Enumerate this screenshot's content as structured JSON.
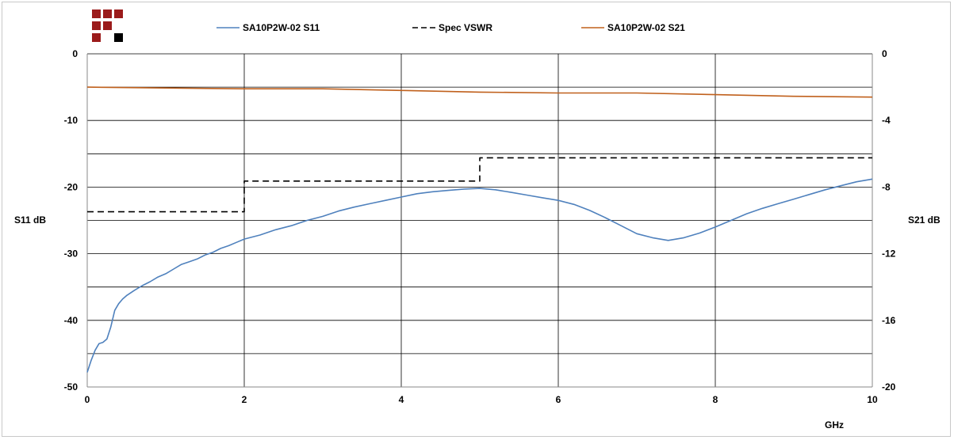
{
  "chart_data": {
    "type": "line",
    "xlabel": "GHz",
    "ylabel": "S11 dB",
    "y2label": "S21 dB",
    "xlim": [
      0,
      10
    ],
    "ylim": [
      -50,
      0
    ],
    "y2lim": [
      -20,
      0
    ],
    "x_ticks": [
      "0",
      "2",
      "4",
      "6",
      "8",
      "10"
    ],
    "y_ticks": [
      "0",
      "-10",
      "-20",
      "-30",
      "-40",
      "-50"
    ],
    "y2_ticks": [
      "0",
      "-4",
      "-8",
      "-12",
      "-16",
      "-20"
    ],
    "grid": true,
    "legend_position": "top",
    "series": [
      {
        "name": "SA10P2W-02 S11",
        "axis": "left",
        "color": "#4f81bd",
        "style": "solid",
        "x": [
          0.0,
          0.05,
          0.1,
          0.15,
          0.2,
          0.25,
          0.3,
          0.35,
          0.4,
          0.45,
          0.5,
          0.6,
          0.7,
          0.8,
          0.9,
          1.0,
          1.1,
          1.2,
          1.3,
          1.4,
          1.5,
          1.6,
          1.7,
          1.8,
          1.9,
          2.0,
          2.2,
          2.4,
          2.6,
          2.8,
          3.0,
          3.2,
          3.4,
          3.6,
          3.8,
          4.0,
          4.2,
          4.4,
          4.6,
          4.8,
          5.0,
          5.2,
          5.4,
          5.6,
          5.8,
          6.0,
          6.2,
          6.4,
          6.6,
          6.8,
          7.0,
          7.2,
          7.4,
          7.6,
          7.8,
          8.0,
          8.2,
          8.4,
          8.6,
          8.8,
          9.0,
          9.2,
          9.4,
          9.6,
          9.8,
          10.0
        ],
        "values": [
          -47.8,
          -46.0,
          -44.5,
          -43.5,
          -43.3,
          -42.8,
          -41.0,
          -38.5,
          -37.5,
          -36.8,
          -36.3,
          -35.5,
          -34.8,
          -34.2,
          -33.5,
          -33.0,
          -32.3,
          -31.6,
          -31.2,
          -30.8,
          -30.2,
          -29.8,
          -29.2,
          -28.8,
          -28.3,
          -27.8,
          -27.2,
          -26.4,
          -25.8,
          -25.0,
          -24.4,
          -23.6,
          -23.0,
          -22.5,
          -22.0,
          -21.5,
          -21.0,
          -20.7,
          -20.5,
          -20.3,
          -20.2,
          -20.4,
          -20.8,
          -21.2,
          -21.6,
          -22.0,
          -22.6,
          -23.5,
          -24.6,
          -25.8,
          -27.0,
          -27.6,
          -28.0,
          -27.6,
          -26.9,
          -26.0,
          -25.0,
          -24.0,
          -23.2,
          -22.5,
          -21.8,
          -21.1,
          -20.4,
          -19.8,
          -19.2,
          -18.8
        ]
      },
      {
        "name": "Spec VSWR",
        "axis": "left",
        "color": "#000000",
        "style": "dashed",
        "x": [
          0,
          2,
          2,
          5,
          5,
          10
        ],
        "values": [
          -23.7,
          -23.7,
          -19.1,
          -19.1,
          -15.6,
          -15.6
        ]
      },
      {
        "name": "SA10P2W-02 S21",
        "axis": "right",
        "color": "#c0601c",
        "style": "solid",
        "x": [
          0,
          1,
          2,
          3,
          4,
          5,
          6,
          7,
          8,
          9,
          10
        ],
        "values": [
          -2.0,
          -2.05,
          -2.1,
          -2.1,
          -2.2,
          -2.3,
          -2.35,
          -2.35,
          -2.45,
          -2.55,
          -2.6
        ]
      }
    ]
  },
  "legend": {
    "items": [
      {
        "label": "SA10P2W-02 S11"
      },
      {
        "label": "Spec VSWR"
      },
      {
        "label": "SA10P2W-02 S21"
      }
    ]
  },
  "logo": {
    "colors": [
      "#9b1b1b",
      "#000000"
    ]
  }
}
